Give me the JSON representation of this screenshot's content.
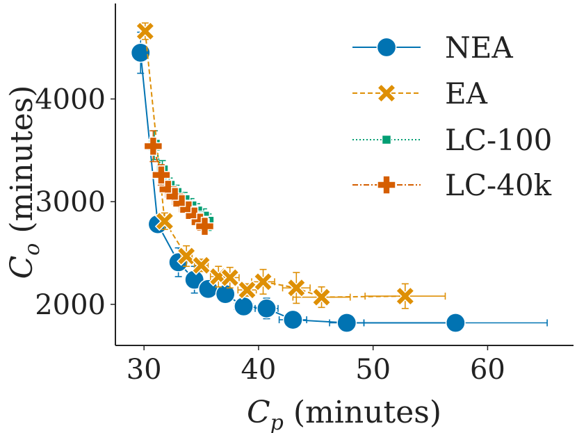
{
  "chart_data": {
    "type": "line",
    "xlabel": "C_p (minutes)",
    "ylabel": "C_o (minutes)",
    "xlabel_parts": {
      "var": "C",
      "sub": "p",
      "unit": " (minutes)"
    },
    "ylabel_parts": {
      "var": "C",
      "sub": "o",
      "unit": " (minutes)"
    },
    "xlim": [
      27.5,
      67.5
    ],
    "ylim": [
      1600,
      4930
    ],
    "xticks": [
      30,
      40,
      50,
      60
    ],
    "yticks": [
      2000,
      3000,
      4000
    ],
    "xtick_labels": [
      "30",
      "40",
      "50",
      "60"
    ],
    "ytick_labels": [
      "2000",
      "3000",
      "4000"
    ],
    "legend_position": "top-right",
    "series": [
      {
        "name": "NEA",
        "color": "#0173b2",
        "marker": "circle",
        "linestyle": "solid",
        "points": [
          {
            "x": 29.7,
            "y": 4450,
            "xerr": 0.2,
            "yerr": 200
          },
          {
            "x": 31.2,
            "y": 2780,
            "xerr": 0.3,
            "yerr": 60
          },
          {
            "x": 33.0,
            "y": 2410,
            "xerr": 0.5,
            "yerr": 140
          },
          {
            "x": 34.4,
            "y": 2240,
            "xerr": 0.5,
            "yerr": 130
          },
          {
            "x": 35.6,
            "y": 2150,
            "xerr": 0.6,
            "yerr": 80
          },
          {
            "x": 37.1,
            "y": 2100,
            "xerr": 0.7,
            "yerr": 80
          },
          {
            "x": 38.7,
            "y": 1980,
            "xerr": 0.8,
            "yerr": 60
          },
          {
            "x": 40.7,
            "y": 1960,
            "xerr": 1.0,
            "yerr": 100
          },
          {
            "x": 43.0,
            "y": 1850,
            "xerr": 1.2,
            "yerr": 50
          },
          {
            "x": 47.7,
            "y": 1820,
            "xerr": 1.5,
            "yerr": 40
          },
          {
            "x": 57.2,
            "y": 1820,
            "xerr": 8.0,
            "yerr": 40
          }
        ]
      },
      {
        "name": "EA",
        "color": "#de8f05",
        "marker": "x",
        "linestyle": "dashed",
        "points": [
          {
            "x": 30.1,
            "y": 4660,
            "xerr": 0.3,
            "yerr": 80
          },
          {
            "x": 31.8,
            "y": 2810,
            "xerr": 0.4,
            "yerr": 80
          },
          {
            "x": 33.7,
            "y": 2470,
            "xerr": 0.5,
            "yerr": 100
          },
          {
            "x": 35.0,
            "y": 2380,
            "xerr": 0.6,
            "yerr": 60
          },
          {
            "x": 36.5,
            "y": 2270,
            "xerr": 0.7,
            "yerr": 100
          },
          {
            "x": 37.5,
            "y": 2260,
            "xerr": 0.8,
            "yerr": 100
          },
          {
            "x": 39.0,
            "y": 2140,
            "xerr": 0.8,
            "yerr": 60
          },
          {
            "x": 40.4,
            "y": 2220,
            "xerr": 1.0,
            "yerr": 120
          },
          {
            "x": 43.3,
            "y": 2160,
            "xerr": 1.2,
            "yerr": 150
          },
          {
            "x": 45.5,
            "y": 2070,
            "xerr": 2.5,
            "yerr": 100
          },
          {
            "x": 52.8,
            "y": 2080,
            "xerr": 3.5,
            "yerr": 120
          }
        ]
      },
      {
        "name": "LC-100",
        "color": "#029e73",
        "marker": "square",
        "linestyle": "dotted",
        "points": [
          {
            "x": 30.9,
            "y": 3550,
            "xerr": 0.3,
            "yerr": 140
          },
          {
            "x": 31.6,
            "y": 3300,
            "xerr": 0.3,
            "yerr": 100
          },
          {
            "x": 32.2,
            "y": 3150,
            "xerr": 0.3,
            "yerr": 80
          },
          {
            "x": 32.8,
            "y": 3080,
            "xerr": 0.3,
            "yerr": 80
          },
          {
            "x": 33.5,
            "y": 3010,
            "xerr": 0.3,
            "yerr": 80
          },
          {
            "x": 34.1,
            "y": 2950,
            "xerr": 0.3,
            "yerr": 80
          },
          {
            "x": 34.6,
            "y": 2900,
            "xerr": 0.3,
            "yerr": 80
          },
          {
            "x": 35.2,
            "y": 2850,
            "xerr": 0.3,
            "yerr": 80
          },
          {
            "x": 35.6,
            "y": 2800,
            "xerr": 0.3,
            "yerr": 80
          }
        ]
      },
      {
        "name": "LC-40k",
        "color": "#d55e00",
        "marker": "plus",
        "linestyle": "dashdot",
        "points": [
          {
            "x": 30.8,
            "y": 3540,
            "xerr": 0.3,
            "yerr": 150
          },
          {
            "x": 31.5,
            "y": 3260,
            "xerr": 0.3,
            "yerr": 100
          },
          {
            "x": 32.1,
            "y": 3120,
            "xerr": 0.3,
            "yerr": 80
          },
          {
            "x": 32.7,
            "y": 3050,
            "xerr": 0.3,
            "yerr": 80
          },
          {
            "x": 33.3,
            "y": 2980,
            "xerr": 0.3,
            "yerr": 80
          },
          {
            "x": 33.9,
            "y": 2920,
            "xerr": 0.3,
            "yerr": 80
          },
          {
            "x": 34.4,
            "y": 2860,
            "xerr": 0.3,
            "yerr": 80
          },
          {
            "x": 34.9,
            "y": 2800,
            "xerr": 0.3,
            "yerr": 80
          },
          {
            "x": 35.3,
            "y": 2760,
            "xerr": 0.3,
            "yerr": 80
          }
        ]
      }
    ]
  }
}
